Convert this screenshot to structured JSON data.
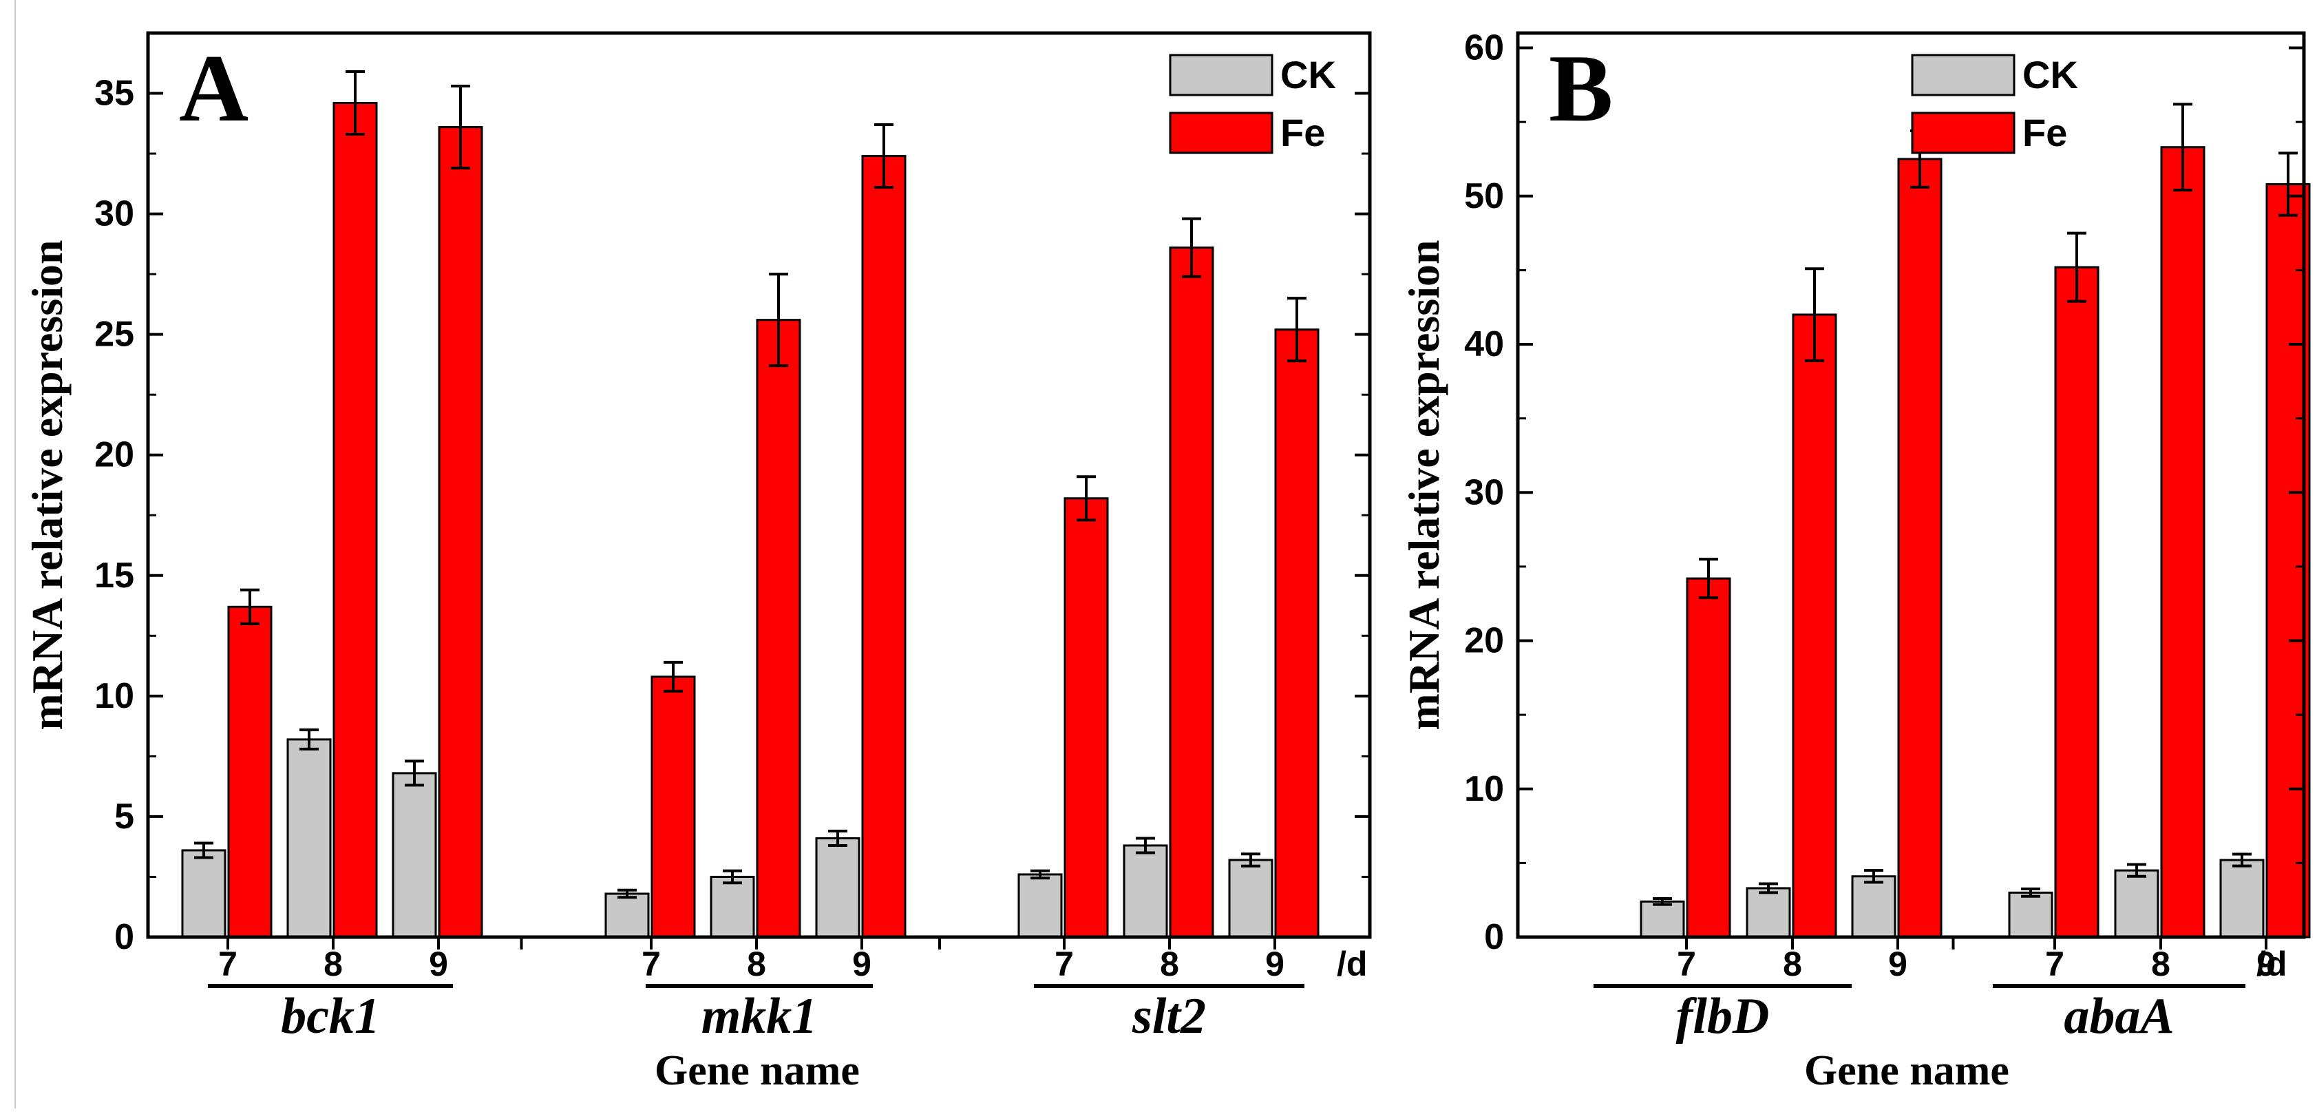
{
  "chart_data": [
    {
      "panel_label": "A",
      "type": "bar",
      "xlabel": "Gene name",
      "ylabel": "mRNA relative expression",
      "ylim": [
        0,
        37.5
      ],
      "yticks": [
        0,
        5,
        10,
        15,
        20,
        25,
        30,
        35
      ],
      "day_unit": "/d",
      "legend": [
        "CK",
        "Fe"
      ],
      "groups": [
        {
          "gene": "bck1",
          "days": [
            "7",
            "8",
            "9"
          ],
          "ck": [
            3.6,
            8.2,
            6.8
          ],
          "ck_err": [
            0.3,
            0.4,
            0.5
          ],
          "fe": [
            13.7,
            34.6,
            33.6
          ],
          "fe_err": [
            0.7,
            1.3,
            1.7
          ]
        },
        {
          "gene": "mkk1",
          "days": [
            "7",
            "8",
            "9"
          ],
          "ck": [
            1.8,
            2.5,
            4.1
          ],
          "ck_err": [
            0.15,
            0.25,
            0.3
          ],
          "fe": [
            10.8,
            25.6,
            32.4
          ],
          "fe_err": [
            0.6,
            1.9,
            1.3
          ]
        },
        {
          "gene": "slt2",
          "days": [
            "7",
            "8",
            "9"
          ],
          "ck": [
            2.6,
            3.8,
            3.2
          ],
          "ck_err": [
            0.15,
            0.3,
            0.25
          ],
          "fe": [
            18.2,
            28.6,
            25.2
          ],
          "fe_err": [
            0.9,
            1.2,
            1.3
          ]
        }
      ]
    },
    {
      "panel_label": "B",
      "type": "bar",
      "xlabel": "Gene name",
      "ylabel": "mRNA relative expression",
      "ylim": [
        0,
        61
      ],
      "yticks": [
        0,
        10,
        20,
        30,
        40,
        50,
        60
      ],
      "day_unit": "/d",
      "legend": [
        "CK",
        "Fe"
      ],
      "groups": [
        {
          "gene": "flbD",
          "days": [
            "7",
            "8",
            "9"
          ],
          "ck": [
            2.4,
            3.3,
            4.1
          ],
          "ck_err": [
            0.2,
            0.3,
            0.4
          ],
          "fe": [
            24.2,
            42.0,
            52.5
          ],
          "fe_err": [
            1.3,
            3.1,
            1.9
          ]
        },
        {
          "gene": "abaA",
          "days": [
            "7",
            "8",
            "9"
          ],
          "ck": [
            3.0,
            4.5,
            5.2
          ],
          "ck_err": [
            0.25,
            0.4,
            0.4
          ],
          "fe": [
            45.2,
            53.3,
            50.8
          ],
          "fe_err": [
            2.3,
            2.9,
            2.1
          ]
        }
      ]
    }
  ],
  "colors": {
    "ck": "#c8c8c8",
    "fe": "#ff0000",
    "axis": "#000000"
  }
}
